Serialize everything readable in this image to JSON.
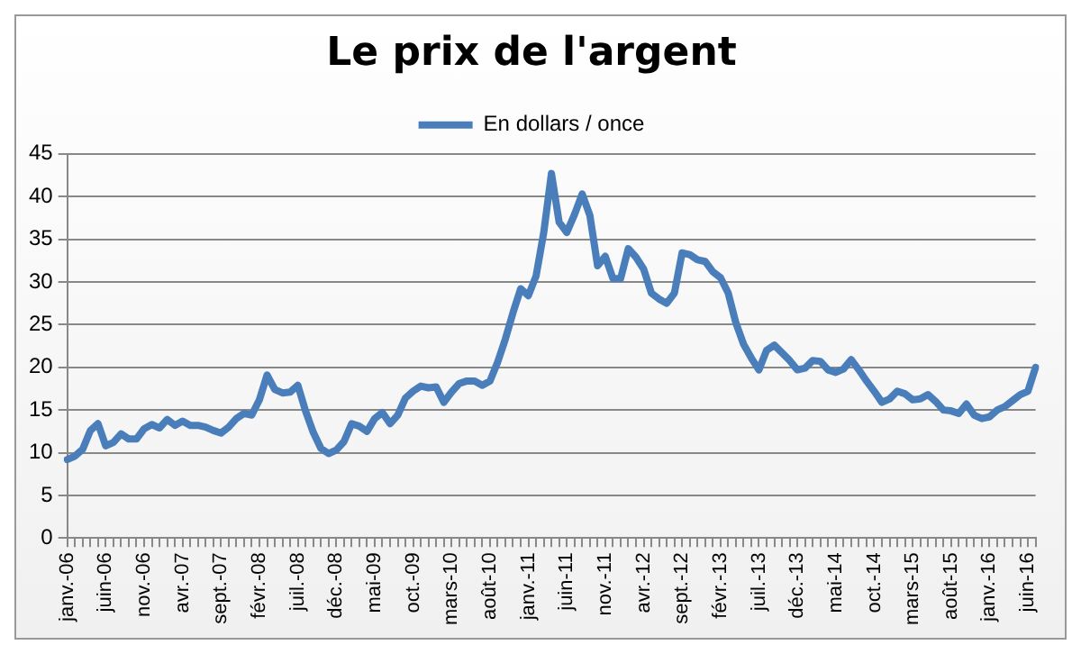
{
  "chart_data": {
    "type": "line",
    "title": "Le prix de l'argent",
    "categories": [
      "janv.-06",
      null,
      null,
      null,
      null,
      "juin-06",
      null,
      null,
      null,
      null,
      "nov.-06",
      null,
      null,
      null,
      null,
      "avr.-07",
      null,
      null,
      null,
      null,
      "sept.-07",
      null,
      null,
      null,
      null,
      "févr.-08",
      null,
      null,
      null,
      null,
      "juil.-08",
      null,
      null,
      null,
      null,
      "déc.-08",
      null,
      null,
      null,
      null,
      "mai-09",
      null,
      null,
      null,
      null,
      "oct.-09",
      null,
      null,
      null,
      null,
      "mars-10",
      null,
      null,
      null,
      null,
      "août-10",
      null,
      null,
      null,
      null,
      "janv.-11",
      null,
      null,
      null,
      null,
      "juin-11",
      null,
      null,
      null,
      null,
      "nov.-11",
      null,
      null,
      null,
      null,
      "avr.-12",
      null,
      null,
      null,
      null,
      "sept.-12",
      null,
      null,
      null,
      null,
      "févr.-13",
      null,
      null,
      null,
      null,
      "juil.-13",
      null,
      null,
      null,
      null,
      "déc.-13",
      null,
      null,
      null,
      null,
      "mai-14",
      null,
      null,
      null,
      null,
      "oct.-14",
      null,
      null,
      null,
      null,
      "mars-15",
      null,
      null,
      null,
      null,
      "août-15",
      null,
      null,
      null,
      null,
      "janv.-16",
      null,
      null,
      null,
      null,
      "juin-16",
      null
    ],
    "series": [
      {
        "name": "En dollars / once",
        "color": "#4a7ebb",
        "values": [
          9.2,
          9.6,
          10.4,
          12.6,
          13.4,
          10.8,
          11.2,
          12.2,
          11.6,
          11.6,
          12.8,
          13.3,
          12.9,
          13.9,
          13.2,
          13.7,
          13.2,
          13.2,
          13.0,
          12.6,
          12.3,
          13.0,
          14.0,
          14.6,
          14.4,
          16.2,
          19.1,
          17.4,
          17.0,
          17.1,
          17.9,
          14.9,
          12.4,
          10.5,
          9.9,
          10.3,
          11.3,
          13.4,
          13.1,
          12.5,
          14.0,
          14.7,
          13.4,
          14.4,
          16.4,
          17.2,
          17.8,
          17.6,
          17.7,
          15.9,
          17.1,
          18.1,
          18.4,
          18.4,
          17.9,
          18.4,
          20.6,
          23.3,
          26.4,
          29.2,
          28.4,
          30.7,
          35.8,
          42.7,
          37.0,
          35.8,
          37.9,
          40.3,
          37.8,
          31.9,
          33.0,
          30.4,
          30.4,
          33.9,
          32.9,
          31.5,
          28.7,
          28.0,
          27.5,
          28.7,
          33.4,
          33.2,
          32.6,
          32.4,
          31.2,
          30.5,
          28.7,
          25.2,
          22.7,
          21.1,
          19.7,
          22.0,
          22.6,
          21.7,
          20.8,
          19.7,
          19.9,
          20.8,
          20.7,
          19.7,
          19.4,
          19.8,
          20.9,
          19.7,
          18.4,
          17.2,
          15.9,
          16.3,
          17.2,
          16.9,
          16.2,
          16.3,
          16.8,
          16.0,
          15.0,
          14.9,
          14.6,
          15.7,
          14.4,
          14.0,
          14.2,
          15.0,
          15.4,
          16.1,
          16.8,
          17.2,
          20.0
        ]
      }
    ],
    "ylim": [
      0,
      45
    ],
    "yticks": [
      0,
      5,
      10,
      15,
      20,
      25,
      30,
      35,
      40,
      45
    ],
    "grid": "y",
    "legend": "top",
    "marker": "none",
    "line_style": "solid"
  }
}
